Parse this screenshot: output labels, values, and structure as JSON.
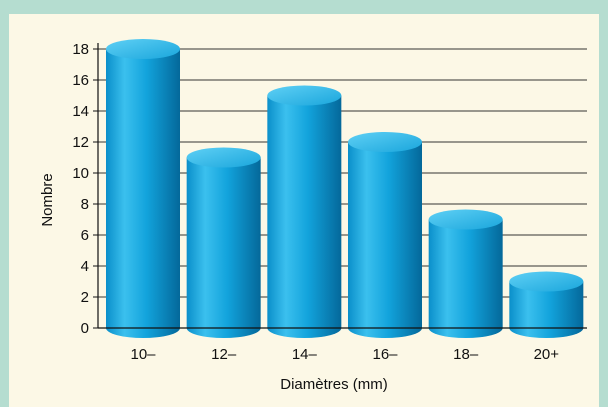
{
  "chart_data": {
    "type": "bar",
    "title": "",
    "xlabel": "Diamètres (mm)",
    "ylabel": "Nombre",
    "categories": [
      "10–",
      "12–",
      "14–",
      "16–",
      "18–",
      "20+"
    ],
    "values": [
      18,
      11,
      15,
      12,
      7,
      3
    ],
    "ylim": [
      0,
      18
    ],
    "yticks": [
      "0",
      "2",
      "4",
      "6",
      "8",
      "10",
      "12",
      "14",
      "16",
      "18"
    ],
    "grid": true,
    "legend": "none",
    "colors": {
      "bar_light": "#3bc0ee",
      "bar_mid": "#0a9bd6",
      "bar_dark": "#0576a8",
      "bar_top": "#27b3e6",
      "grid": "#333333",
      "frame": "#b5ddd0",
      "panel": "#fcf8e6"
    }
  }
}
